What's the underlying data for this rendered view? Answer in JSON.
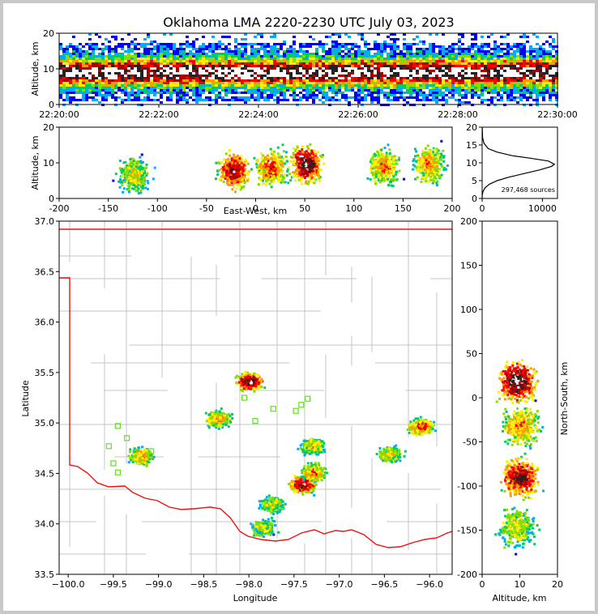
{
  "colors": {
    "state_border": "#ee1111",
    "county_lines": "#c4c4c4",
    "histogram_line": "#000000",
    "station_marker": "#66dd22",
    "source_palette": [
      "#0000ff",
      "#00aaff",
      "#00cc66",
      "#88dd00",
      "#ffee00",
      "#ff9900",
      "#ff0000",
      "#aa0000",
      "#222222",
      "#ffffff"
    ]
  },
  "chart_data": {
    "title": "Oklahoma LMA 2220-2230 UTC July 03, 2023",
    "panels": [
      {
        "id": "time_altitude",
        "type": "heatmap",
        "xlabel": "",
        "ylabel": "Altitude, km",
        "xlim": [
          "22:20:00",
          "22:30:00"
        ],
        "ylim": [
          0,
          20
        ],
        "xticks": [
          "22:20:00",
          "22:22:00",
          "22:24:00",
          "22:26:00",
          "22:28:00",
          "22:30:00"
        ],
        "yticks": [
          0,
          10,
          20
        ],
        "peak_density_altitude_km": 9
      },
      {
        "id": "ew_altitude",
        "type": "heatmap",
        "xlabel": "East-West, km",
        "ylabel": "Altitude, km",
        "xlim": [
          -200,
          200
        ],
        "ylim": [
          0,
          20
        ],
        "xticks": [
          -200,
          -150,
          -100,
          -50,
          0,
          50,
          100,
          150,
          200
        ],
        "yticks": [
          0,
          10,
          20
        ],
        "clusters": [
          {
            "x": -125,
            "alt": 7,
            "level": 0.5
          },
          {
            "x": -23,
            "alt": 8,
            "level": 0.85
          },
          {
            "x": 15,
            "alt": 9,
            "level": 0.7
          },
          {
            "x": 50,
            "alt": 10,
            "level": 0.95
          },
          {
            "x": 130,
            "alt": 9,
            "level": 0.6
          },
          {
            "x": 175,
            "alt": 10,
            "level": 0.6
          }
        ]
      },
      {
        "id": "altitude_histogram",
        "type": "line",
        "xlabel": "",
        "ylabel": "",
        "xlim": [
          0,
          12500
        ],
        "ylim": [
          0,
          20
        ],
        "xticks": [
          0,
          10000
        ],
        "yticks": [
          0,
          5,
          10,
          15,
          20
        ],
        "annotation": "297,468 sources",
        "x": [
          0,
          30,
          150,
          500,
          1200,
          2500,
          4500,
          7000,
          9500,
          11500,
          12000,
          11000,
          8000,
          5000,
          2500,
          1000,
          300,
          80,
          10
        ],
        "y": [
          0,
          1,
          2,
          3,
          4,
          5,
          6,
          7,
          8,
          9,
          9.6,
          10.5,
          11.3,
          12,
          13,
          14,
          15.5,
          17,
          20
        ]
      },
      {
        "id": "plan_view",
        "type": "heatmap",
        "xlabel": "Longitude",
        "ylabel": "Latitude",
        "xlim": [
          -100.1,
          -95.75
        ],
        "ylim": [
          33.5,
          37.0
        ],
        "xticks": [
          -100.0,
          -99.5,
          -99.0,
          -98.5,
          -98.0,
          -97.5,
          -97.0,
          -96.5,
          -96.0
        ],
        "yticks": [
          33.5,
          34.0,
          34.5,
          35.0,
          35.5,
          36.0,
          36.5,
          37.0
        ],
        "xtick_labels": [
          "−100.0",
          "−99.5",
          "−99.0",
          "−98.5",
          "−98.0",
          "−97.5",
          "−97.0",
          "−96.5",
          "−96.0"
        ],
        "ytick_labels": [
          "33.5",
          "34.0",
          "34.5",
          "35.0",
          "35.5",
          "36.0",
          "36.5",
          "37.0"
        ],
        "clusters": [
          {
            "lon": -98.0,
            "lat": 35.42,
            "level": 0.95
          },
          {
            "lon": -97.42,
            "lat": 34.4,
            "level": 0.9
          },
          {
            "lon": -99.2,
            "lat": 34.68,
            "level": 0.6
          },
          {
            "lon": -98.35,
            "lat": 35.05,
            "level": 0.6
          },
          {
            "lon": -96.1,
            "lat": 34.97,
            "level": 0.7
          },
          {
            "lon": -97.3,
            "lat": 34.52,
            "level": 0.65
          },
          {
            "lon": -97.3,
            "lat": 34.78,
            "level": 0.55
          },
          {
            "lon": -96.45,
            "lat": 34.7,
            "level": 0.5
          },
          {
            "lon": -97.75,
            "lat": 34.2,
            "level": 0.45
          },
          {
            "lon": -97.85,
            "lat": 33.97,
            "level": 0.45
          }
        ],
        "stations": [
          [
            -99.45,
            34.97
          ],
          [
            -99.55,
            34.77
          ],
          [
            -99.35,
            34.85
          ],
          [
            -99.5,
            34.6
          ],
          [
            -99.45,
            34.51
          ],
          [
            -99.08,
            34.72
          ],
          [
            -98.05,
            35.25
          ],
          [
            -97.93,
            35.02
          ],
          [
            -97.73,
            35.14
          ],
          [
            -97.48,
            35.12
          ],
          [
            -97.42,
            35.18
          ],
          [
            -97.35,
            35.24
          ]
        ]
      },
      {
        "id": "altitude_ns",
        "type": "heatmap",
        "xlabel": "Altitude, km",
        "ylabel": "North-South, km",
        "xlim": [
          0,
          20
        ],
        "ylim": [
          -200,
          200
        ],
        "xticks": [
          0,
          10,
          20
        ],
        "yticks": [
          -200,
          -150,
          -100,
          -50,
          0,
          50,
          100,
          150,
          200
        ],
        "clusters": [
          {
            "ns": 20,
            "alt": 9,
            "level": 0.95
          },
          {
            "ns": -90,
            "alt": 10,
            "level": 0.85
          },
          {
            "ns": -30,
            "alt": 10,
            "level": 0.6
          },
          {
            "ns": -145,
            "alt": 9,
            "level": 0.45
          }
        ]
      }
    ]
  }
}
